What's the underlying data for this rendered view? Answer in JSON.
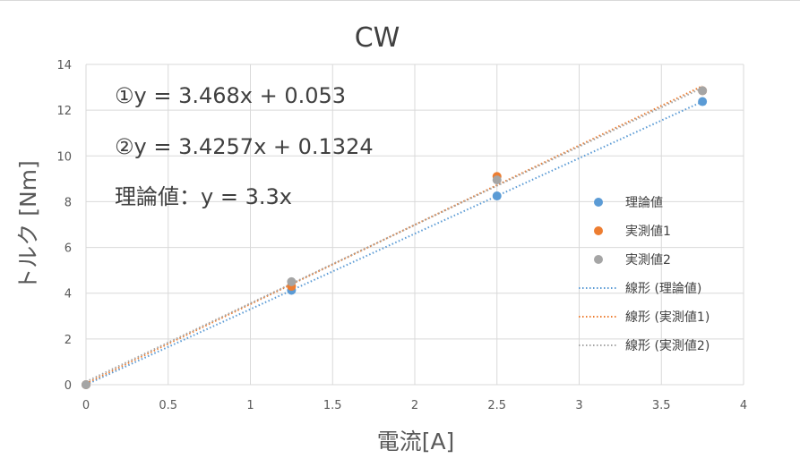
{
  "chart_data": {
    "type": "scatter",
    "title": "CW",
    "xlabel": "電流[A]",
    "ylabel": "トルク [Nm]",
    "xlim": [
      0,
      4
    ],
    "ylim": [
      0,
      14
    ],
    "x_ticks": [
      "0",
      "0.5",
      "1",
      "1.5",
      "2",
      "2.5",
      "3",
      "3.5",
      "4"
    ],
    "y_ticks": [
      "0",
      "2",
      "4",
      "6",
      "8",
      "10",
      "12",
      "14"
    ],
    "grid": true,
    "legend_position": "right",
    "series": [
      {
        "name": "理論値",
        "color": "#5B9BD5",
        "points": [
          [
            0,
            0
          ],
          [
            1.25,
            4.125
          ],
          [
            2.5,
            8.25
          ],
          [
            3.75,
            12.375
          ]
        ]
      },
      {
        "name": "実測値1",
        "color": "#ED7D31",
        "points": [
          [
            0,
            0
          ],
          [
            1.25,
            4.3
          ],
          [
            2.5,
            9.1
          ],
          [
            3.75,
            12.85
          ]
        ]
      },
      {
        "name": "実測値2",
        "color": "#A5A5A5",
        "points": [
          [
            0,
            0
          ],
          [
            1.25,
            4.5
          ],
          [
            2.5,
            8.95
          ],
          [
            3.75,
            12.85
          ]
        ]
      }
    ],
    "trendlines": [
      {
        "name": "線形 (理論値)",
        "color": "#5B9BD5",
        "slope": 3.3,
        "intercept": 0,
        "x_range": [
          0,
          3.75
        ]
      },
      {
        "name": "線形 (実測値1)",
        "color": "#ED7D31",
        "slope": 3.468,
        "intercept": 0.053,
        "x_range": [
          0,
          3.75
        ]
      },
      {
        "name": "線形 (実測値2)",
        "color": "#A5A5A5",
        "slope": 3.4257,
        "intercept": 0.1324,
        "x_range": [
          0,
          3.75
        ]
      }
    ],
    "annotations": [
      "①y = 3.468x + 0.053",
      "②y = 3.4257x + 0.1324",
      "理論値：y = 3.3x"
    ]
  }
}
